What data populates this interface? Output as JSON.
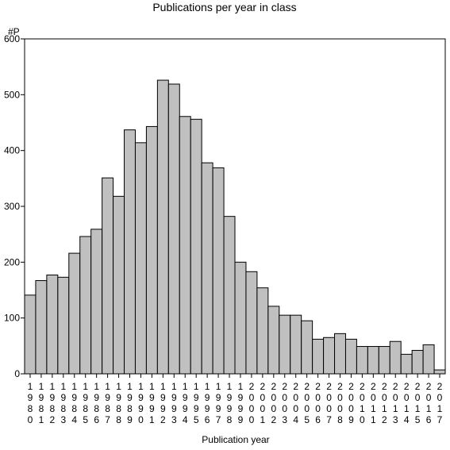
{
  "chart_data": {
    "type": "bar",
    "title": "Publications per year in class",
    "xlabel": "Publication year",
    "ylabel": "#P",
    "ylim": [
      0,
      600
    ],
    "yticks": [
      0,
      100,
      200,
      300,
      400,
      500,
      600
    ],
    "categories": [
      "1980",
      "1981",
      "1982",
      "1983",
      "1984",
      "1985",
      "1986",
      "1987",
      "1988",
      "1989",
      "1990",
      "1991",
      "1992",
      "1993",
      "1994",
      "1995",
      "1996",
      "1997",
      "1998",
      "1999",
      "2000",
      "2001",
      "2002",
      "2003",
      "2004",
      "2005",
      "2006",
      "2007",
      "2008",
      "2009",
      "2010",
      "2011",
      "2012",
      "2013",
      "2014",
      "2015",
      "2016",
      "2017"
    ],
    "values": [
      141,
      167,
      177,
      173,
      216,
      246,
      259,
      351,
      318,
      437,
      414,
      443,
      526,
      519,
      461,
      456,
      378,
      369,
      282,
      200,
      183,
      154,
      121,
      105,
      105,
      95,
      62,
      65,
      72,
      62,
      49,
      49,
      49,
      58,
      35,
      42,
      52,
      7
    ],
    "colors": {
      "bar_fill": "#c0c0c0",
      "bar_stroke": "#000000"
    },
    "grid": false,
    "legend": "none"
  }
}
